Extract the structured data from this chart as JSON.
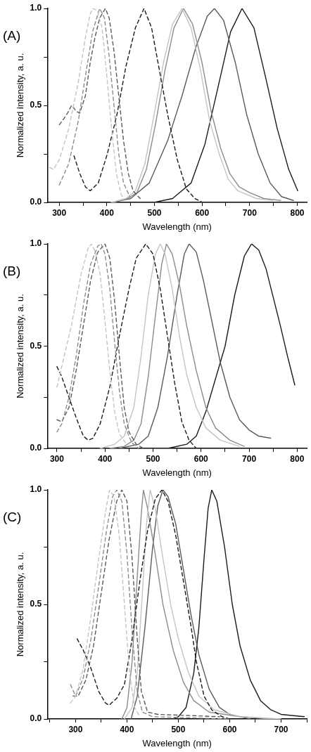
{
  "chart_data": [
    {
      "type": "line",
      "title": "(A)",
      "xlabel": "Wavelength (nm)",
      "ylabel": "Normalized intensity, a. u.",
      "xlim": [
        275,
        820
      ],
      "ylim": [
        0,
        1
      ],
      "xticks": [
        300,
        {
          "value": 350,
          "label": null
        },
        400,
        {
          "value": 450,
          "label": null
        },
        500,
        {
          "value": 550,
          "label": null
        },
        600,
        {
          "value": 650,
          "label": null
        },
        700,
        {
          "value": 750,
          "label": null
        },
        800
      ],
      "yticks": [
        {
          "value": 0,
          "label": "0.0"
        },
        {
          "value": 0.25,
          "label": null
        },
        {
          "value": 0.5,
          "label": "0.5"
        },
        {
          "value": 0.75,
          "label": null
        },
        {
          "value": 1,
          "label": "1.0"
        }
      ],
      "series": [
        {
          "color": "#c4c4c4",
          "line_style": "dashed",
          "x": [
            280,
            288,
            300,
            320,
            340,
            355,
            365,
            370,
            380,
            390,
            400,
            410,
            420,
            430,
            436
          ],
          "values": [
            0.18,
            0.17,
            0.22,
            0.38,
            0.62,
            0.85,
            0.97,
            1.0,
            0.99,
            0.9,
            0.65,
            0.38,
            0.15,
            0.04,
            0.02
          ]
        },
        {
          "color": "#8c8c8c",
          "line_style": "dashed",
          "x": [
            300,
            320,
            340,
            355,
            370,
            385,
            395,
            405,
            415,
            425,
            435,
            450
          ],
          "values": [
            0.09,
            0.2,
            0.42,
            0.65,
            0.88,
            1.0,
            0.95,
            0.75,
            0.5,
            0.25,
            0.1,
            0.02
          ]
        },
        {
          "color": "#5a5a5a",
          "line_style": "dashed",
          "x": [
            300,
            315,
            326,
            336,
            343,
            355,
            365,
            375,
            385,
            397,
            405,
            415,
            425,
            435,
            445,
            455,
            470
          ],
          "values": [
            0.4,
            0.45,
            0.5,
            0.47,
            0.46,
            0.55,
            0.72,
            0.85,
            0.95,
            1.0,
            0.95,
            0.78,
            0.55,
            0.32,
            0.15,
            0.06,
            0.02
          ]
        },
        {
          "color": "#1a1a1a",
          "line_style": "dashed",
          "x": [
            331,
            343,
            355,
            365,
            382,
            401,
            421,
            440,
            460,
            478,
            494,
            509,
            528,
            548,
            567,
            585,
            601
          ],
          "values": [
            0.24,
            0.15,
            0.08,
            0.06,
            0.1,
            0.25,
            0.45,
            0.7,
            0.9,
            1.0,
            0.9,
            0.7,
            0.45,
            0.22,
            0.07,
            0.02,
            0.0
          ]
        },
        {
          "color": "#c4c4c4",
          "line_style": "solid",
          "x": [
            409,
            440,
            460,
            480,
            499,
            519,
            538,
            558,
            577,
            597,
            616,
            636,
            655,
            675,
            714,
            748
          ],
          "values": [
            0.0,
            0.02,
            0.06,
            0.2,
            0.45,
            0.72,
            0.92,
            1.0,
            0.9,
            0.68,
            0.42,
            0.25,
            0.12,
            0.06,
            0.02,
            0.01
          ]
        },
        {
          "color": "#8c8c8c",
          "line_style": "solid",
          "x": [
            412,
            443,
            463,
            483,
            502,
            522,
            541,
            561,
            580,
            600,
            619,
            639,
            658,
            678,
            700,
            730,
            765
          ],
          "values": [
            0.0,
            0.02,
            0.05,
            0.17,
            0.4,
            0.68,
            0.9,
            1.0,
            0.92,
            0.72,
            0.47,
            0.28,
            0.15,
            0.08,
            0.05,
            0.02,
            0.01
          ]
        },
        {
          "color": "#5a5a5a",
          "line_style": "solid",
          "x": [
            411,
            450,
            489,
            528,
            558,
            587,
            611,
            626,
            645,
            670,
            694,
            718,
            743,
            767,
            792
          ],
          "values": [
            0.0,
            0.02,
            0.1,
            0.32,
            0.55,
            0.8,
            0.96,
            1.0,
            0.94,
            0.72,
            0.45,
            0.25,
            0.1,
            0.03,
            0.01
          ]
        },
        {
          "color": "#1a1a1a",
          "line_style": "solid",
          "x": [
            499,
            538,
            577,
            606,
            636,
            660,
            684,
            709,
            733,
            758,
            782,
            801
          ],
          "values": [
            0.0,
            0.02,
            0.1,
            0.3,
            0.62,
            0.88,
            1.0,
            0.9,
            0.65,
            0.38,
            0.17,
            0.06
          ]
        }
      ]
    },
    {
      "type": "line",
      "title": "(B)",
      "xlabel": "Wavelength (nm)",
      "ylabel": "Normalized intensity, a. u.",
      "xlim": [
        280,
        820
      ],
      "ylim": [
        0,
        1
      ],
      "xticks": [
        300,
        {
          "value": 350,
          "label": null
        },
        400,
        {
          "value": 450,
          "label": null
        },
        500,
        {
          "value": 550,
          "label": null
        },
        600,
        {
          "value": 650,
          "label": null
        },
        700,
        {
          "value": 750,
          "label": null
        },
        800
      ],
      "yticks": [
        {
          "value": 0,
          "label": "0.0"
        },
        {
          "value": 0.25,
          "label": null
        },
        {
          "value": 0.5,
          "label": "0.5"
        },
        {
          "value": 0.75,
          "label": null
        },
        {
          "value": 1,
          "label": "1.0"
        }
      ],
      "series": [
        {
          "color": "#c4c4c4",
          "line_style": "dashed",
          "x": [
            300,
            310,
            330,
            350,
            365,
            372,
            380,
            390,
            400,
            410,
            420,
            430,
            445
          ],
          "values": [
            0.3,
            0.4,
            0.6,
            0.85,
            0.98,
            1.0,
            0.96,
            0.85,
            0.62,
            0.38,
            0.18,
            0.07,
            0.02
          ]
        },
        {
          "color": "#8c8c8c",
          "line_style": "dashed",
          "x": [
            300,
            310,
            325,
            340,
            355,
            370,
            385,
            392,
            400,
            410,
            420,
            430,
            440,
            455,
            470
          ],
          "values": [
            0.08,
            0.12,
            0.25,
            0.45,
            0.7,
            0.9,
            0.99,
            1.0,
            0.95,
            0.78,
            0.52,
            0.28,
            0.12,
            0.03,
            0.0
          ]
        },
        {
          "color": "#5a5a5a",
          "line_style": "dashed",
          "x": [
            300,
            310,
            325,
            340,
            355,
            370,
            385,
            400,
            410,
            420,
            430,
            440,
            450,
            465,
            480
          ],
          "values": [
            0.14,
            0.13,
            0.2,
            0.38,
            0.6,
            0.82,
            0.96,
            1.0,
            0.93,
            0.72,
            0.45,
            0.2,
            0.08,
            0.02,
            0.0
          ]
        },
        {
          "color": "#1a1a1a",
          "line_style": "dashed",
          "x": [
            300,
            310,
            325,
            340,
            355,
            365,
            375,
            390,
            410,
            430,
            450,
            465,
            485,
            500,
            515,
            530,
            545,
            560,
            575,
            590
          ],
          "values": [
            0.4,
            0.35,
            0.25,
            0.15,
            0.06,
            0.04,
            0.05,
            0.12,
            0.3,
            0.55,
            0.78,
            0.93,
            1.0,
            0.95,
            0.78,
            0.55,
            0.32,
            0.13,
            0.04,
            0.0
          ]
        },
        {
          "color": "#c4c4c4",
          "line_style": "solid",
          "x": [
            390,
            420,
            440,
            460,
            475,
            490,
            505,
            515,
            525,
            540,
            555,
            570,
            590,
            610,
            640,
            680
          ],
          "values": [
            0.0,
            0.02,
            0.06,
            0.2,
            0.45,
            0.75,
            0.95,
            1.0,
            0.95,
            0.78,
            0.55,
            0.36,
            0.2,
            0.1,
            0.04,
            0.01
          ]
        },
        {
          "color": "#8c8c8c",
          "line_style": "solid",
          "x": [
            410,
            440,
            460,
            475,
            490,
            505,
            518,
            528,
            540,
            555,
            570,
            590,
            610,
            630,
            660,
            690
          ],
          "values": [
            0.0,
            0.01,
            0.04,
            0.12,
            0.35,
            0.65,
            0.9,
            1.0,
            0.95,
            0.8,
            0.6,
            0.38,
            0.2,
            0.1,
            0.04,
            0.01
          ]
        },
        {
          "color": "#5a5a5a",
          "line_style": "solid",
          "x": [
            430,
            470,
            490,
            510,
            530,
            550,
            565,
            575,
            590,
            605,
            620,
            640,
            660,
            680,
            700,
            720,
            745
          ],
          "values": [
            0.0,
            0.02,
            0.06,
            0.2,
            0.45,
            0.75,
            0.95,
            1.0,
            0.96,
            0.82,
            0.65,
            0.42,
            0.25,
            0.14,
            0.09,
            0.06,
            0.05
          ]
        },
        {
          "color": "#1a1a1a",
          "line_style": "solid",
          "x": [
            490,
            530,
            570,
            590,
            610,
            630,
            650,
            670,
            690,
            705,
            720,
            735,
            750,
            765,
            780,
            795
          ],
          "values": [
            0.0,
            0.0,
            0.02,
            0.06,
            0.18,
            0.34,
            0.5,
            0.75,
            0.94,
            1.0,
            0.97,
            0.88,
            0.74,
            0.6,
            0.45,
            0.31
          ]
        }
      ]
    },
    {
      "type": "line",
      "title": "(C)",
      "xlabel": "Wavelength (nm)",
      "ylabel": "Normalized intensity, a. u.",
      "xlim": [
        245,
        750
      ],
      "ylim": [
        0,
        1
      ],
      "xticks": [
        {
          "value": 250,
          "label": null
        },
        300,
        {
          "value": 350,
          "label": null
        },
        400,
        {
          "value": 450,
          "label": null
        },
        500,
        {
          "value": 550,
          "label": null
        },
        600,
        {
          "value": 650,
          "label": null
        },
        700,
        {
          "value": 750,
          "label": null
        }
      ],
      "yticks": [
        {
          "value": 0,
          "label": "0.0"
        },
        {
          "value": 0.25,
          "label": null
        },
        {
          "value": 0.5,
          "label": "0.5"
        },
        {
          "value": 0.75,
          "label": null
        },
        {
          "value": 1,
          "label": "1.0"
        }
      ],
      "series": [
        {
          "color": "#c4c4c4",
          "line_style": "dashed",
          "x": [
            290,
            300,
            315,
            330,
            345,
            358,
            366,
            375,
            385,
            395,
            405,
            415,
            425
          ],
          "values": [
            0.07,
            0.1,
            0.22,
            0.45,
            0.7,
            0.9,
            1.0,
            0.97,
            0.8,
            0.5,
            0.2,
            0.05,
            0.01
          ]
        },
        {
          "color": "#8c8c8c",
          "line_style": "dashed",
          "x": [
            290,
            300,
            315,
            330,
            345,
            360,
            372,
            380,
            390,
            400,
            410,
            420,
            430,
            450,
            600
          ],
          "values": [
            0.15,
            0.1,
            0.18,
            0.35,
            0.58,
            0.82,
            0.97,
            1.0,
            0.95,
            0.72,
            0.38,
            0.12,
            0.03,
            0.01,
            0.0
          ]
        },
        {
          "color": "#5a5a5a",
          "line_style": "dashed",
          "x": [
            295,
            305,
            320,
            335,
            350,
            365,
            380,
            390,
            400,
            410,
            420,
            428,
            440,
            460,
            580
          ],
          "values": [
            0.1,
            0.1,
            0.17,
            0.32,
            0.55,
            0.78,
            0.95,
            1.0,
            0.95,
            0.7,
            0.35,
            0.12,
            0.03,
            0.02,
            0.01
          ]
        },
        {
          "color": "#1a1a1a",
          "line_style": "dashed",
          "x": [
            303,
            315,
            330,
            345,
            358,
            365,
            380,
            395,
            410,
            425,
            440,
            455,
            468,
            480,
            495,
            510,
            525,
            535,
            550,
            565,
            585,
            600
          ],
          "values": [
            0.35,
            0.3,
            0.22,
            0.12,
            0.07,
            0.06,
            0.09,
            0.15,
            0.35,
            0.6,
            0.82,
            0.96,
            1.0,
            0.95,
            0.8,
            0.6,
            0.4,
            0.25,
            0.1,
            0.04,
            0.01,
            0.0
          ]
        },
        {
          "color": "#c4c4c4",
          "line_style": "solid",
          "x": [
            395,
            410,
            420,
            430,
            438,
            445,
            455,
            470,
            485,
            500,
            520,
            540,
            570,
            620,
            700
          ],
          "values": [
            0.0,
            0.05,
            0.2,
            0.55,
            0.85,
            1.0,
            0.92,
            0.7,
            0.5,
            0.35,
            0.2,
            0.1,
            0.04,
            0.01,
            0.0
          ]
        },
        {
          "color": "#8c8c8c",
          "line_style": "solid",
          "x": [
            390,
            400,
            410,
            420,
            428,
            432,
            440,
            455,
            470,
            490,
            510,
            530,
            560,
            620,
            680
          ],
          "values": [
            0.0,
            0.05,
            0.25,
            0.62,
            0.9,
            1.0,
            0.92,
            0.72,
            0.5,
            0.3,
            0.16,
            0.08,
            0.03,
            0.01,
            0.0
          ]
        },
        {
          "color": "#5a5a5a",
          "line_style": "solid",
          "x": [
            408,
            420,
            435,
            450,
            460,
            470,
            480,
            495,
            510,
            525,
            540,
            560,
            580,
            600,
            640
          ],
          "values": [
            0.0,
            0.1,
            0.4,
            0.75,
            0.93,
            1.0,
            0.97,
            0.85,
            0.65,
            0.45,
            0.28,
            0.13,
            0.05,
            0.02,
            0.0
          ]
        },
        {
          "color": "#1a1a1a",
          "line_style": "solid",
          "x": [
            490,
            500,
            515,
            530,
            540,
            550,
            558,
            565,
            575,
            590,
            605,
            620,
            640,
            660,
            680,
            700,
            745
          ],
          "values": [
            0.0,
            0.01,
            0.05,
            0.2,
            0.4,
            0.7,
            0.92,
            1.0,
            0.95,
            0.75,
            0.5,
            0.32,
            0.17,
            0.08,
            0.04,
            0.02,
            0.01
          ]
        }
      ]
    }
  ]
}
